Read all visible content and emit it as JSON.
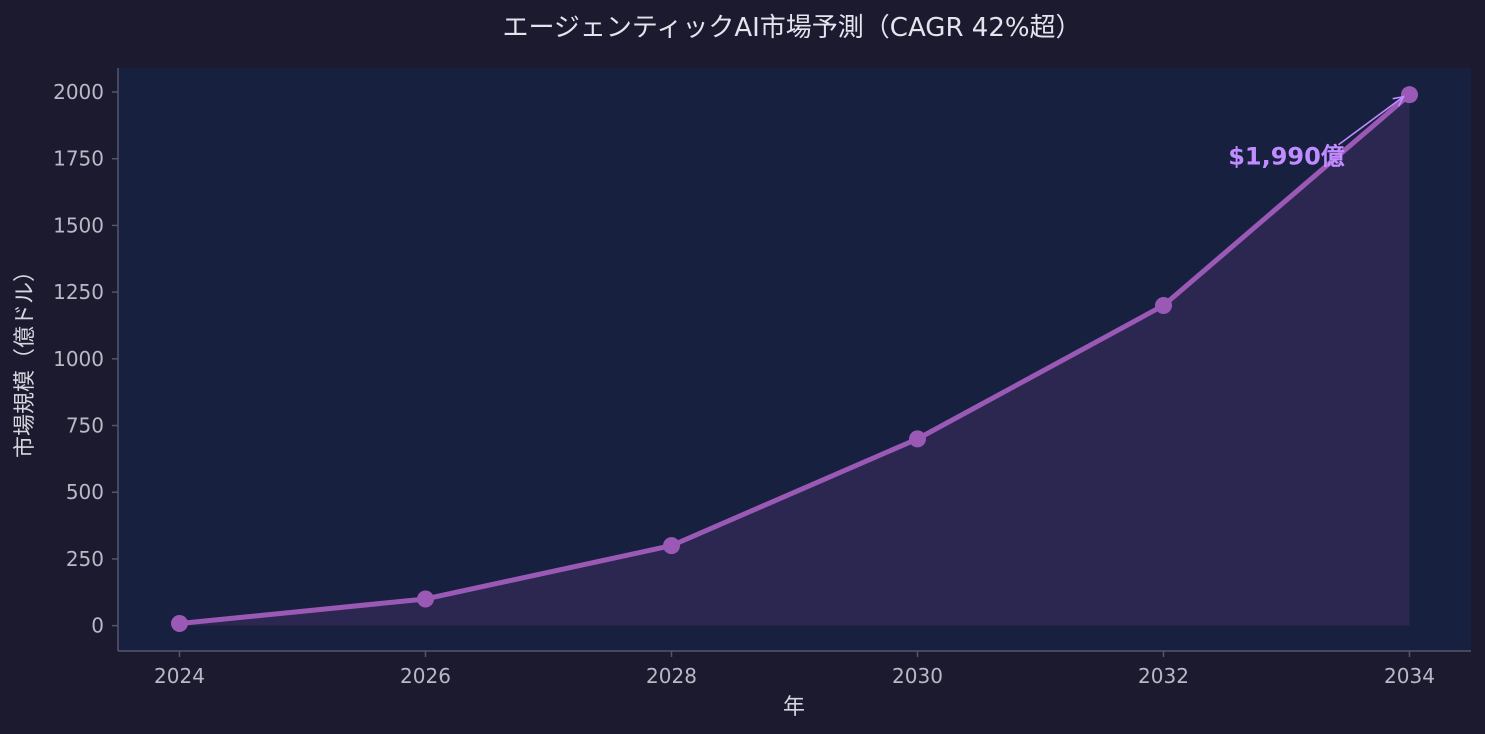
{
  "chart_data": {
    "type": "line",
    "title": "エージェンティックAI市場予測（CAGR 42%超）",
    "xlabel": "年",
    "ylabel": "市場規模（億ドル）",
    "x": [
      2024,
      2026,
      2028,
      2030,
      2032,
      2034
    ],
    "series": [
      {
        "values": [
          8,
          100,
          300,
          700,
          1200,
          1990
        ]
      }
    ],
    "xlim": [
      2023.5,
      2034.5
    ],
    "ylim": [
      -95,
      2090
    ],
    "xticks": [
      2024,
      2026,
      2028,
      2030,
      2032,
      2034
    ],
    "yticks": [
      0,
      250,
      500,
      750,
      1000,
      1250,
      1500,
      1750,
      2000
    ],
    "grid": false,
    "area_fill": true,
    "annotation": {
      "text": "$1,990億",
      "x": 2034,
      "y": 1990,
      "text_x": 2033,
      "text_y": 1750
    },
    "colors": {
      "background": "#1b1a2e",
      "plot_background": "#17203e",
      "line": "#9b59b6",
      "marker": "#9b59b6",
      "area": "#2c2852",
      "annotation": "#c08cff",
      "axis": "#55566a",
      "text": "#d6d6e0"
    }
  }
}
